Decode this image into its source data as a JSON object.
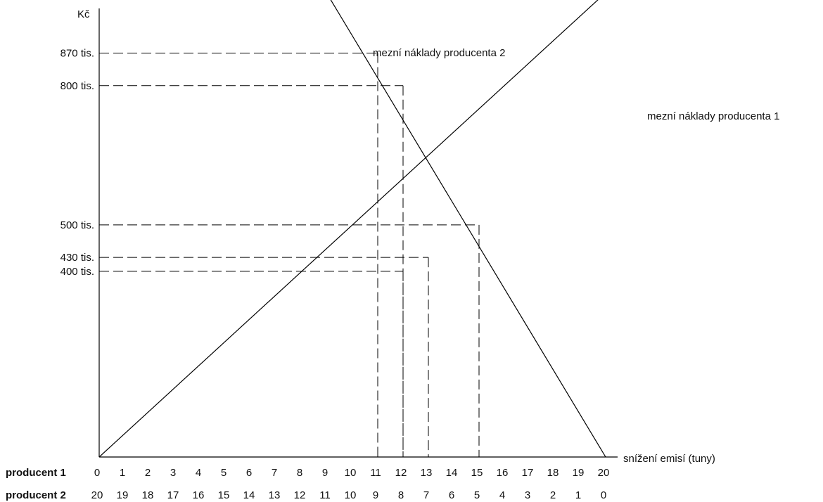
{
  "chart_data": {
    "type": "line",
    "ylabel": "Kč",
    "xlabel": "snížení emisí (tuny)",
    "xlim": [
      0,
      20
    ],
    "ylim": [
      0,
      1000
    ],
    "grid": false,
    "x_rows": [
      {
        "label": "producent 1",
        "ticks": [
          "0",
          "1",
          "2",
          "3",
          "4",
          "5",
          "6",
          "7",
          "8",
          "9",
          "10",
          "11",
          "12",
          "13",
          "14",
          "15",
          "16",
          "17",
          "18",
          "19",
          "20"
        ]
      },
      {
        "label": "producent 2",
        "ticks": [
          "20",
          "19",
          "18",
          "17",
          "16",
          "15",
          "14",
          "13",
          "12",
          "11",
          "10",
          "9",
          "8",
          "7",
          "6",
          "5",
          "4",
          "3",
          "2",
          "1",
          "0"
        ]
      }
    ],
    "y_ticks": [
      {
        "value": 870,
        "label": "870 tis."
      },
      {
        "value": 800,
        "label": "800 tis."
      },
      {
        "value": 500,
        "label": "500 tis."
      },
      {
        "value": 430,
        "label": "430 tis."
      },
      {
        "value": 400,
        "label": "400 tis."
      }
    ],
    "series": [
      {
        "name": "mezní náklady producenta 1",
        "x": [
          0,
          20.8
        ],
        "y": [
          0,
          1040
        ]
      },
      {
        "name": "mezní náklady producenta 2",
        "x": [
          8.7,
          20
        ],
        "y": [
          1025,
          0
        ]
      }
    ],
    "reference_lines": [
      {
        "x": 11,
        "y": 870
      },
      {
        "x": 12,
        "y": 800
      },
      {
        "x": 15,
        "y": 500
      },
      {
        "x": 13,
        "y": 430
      },
      {
        "x": 12,
        "y": 400
      }
    ]
  }
}
